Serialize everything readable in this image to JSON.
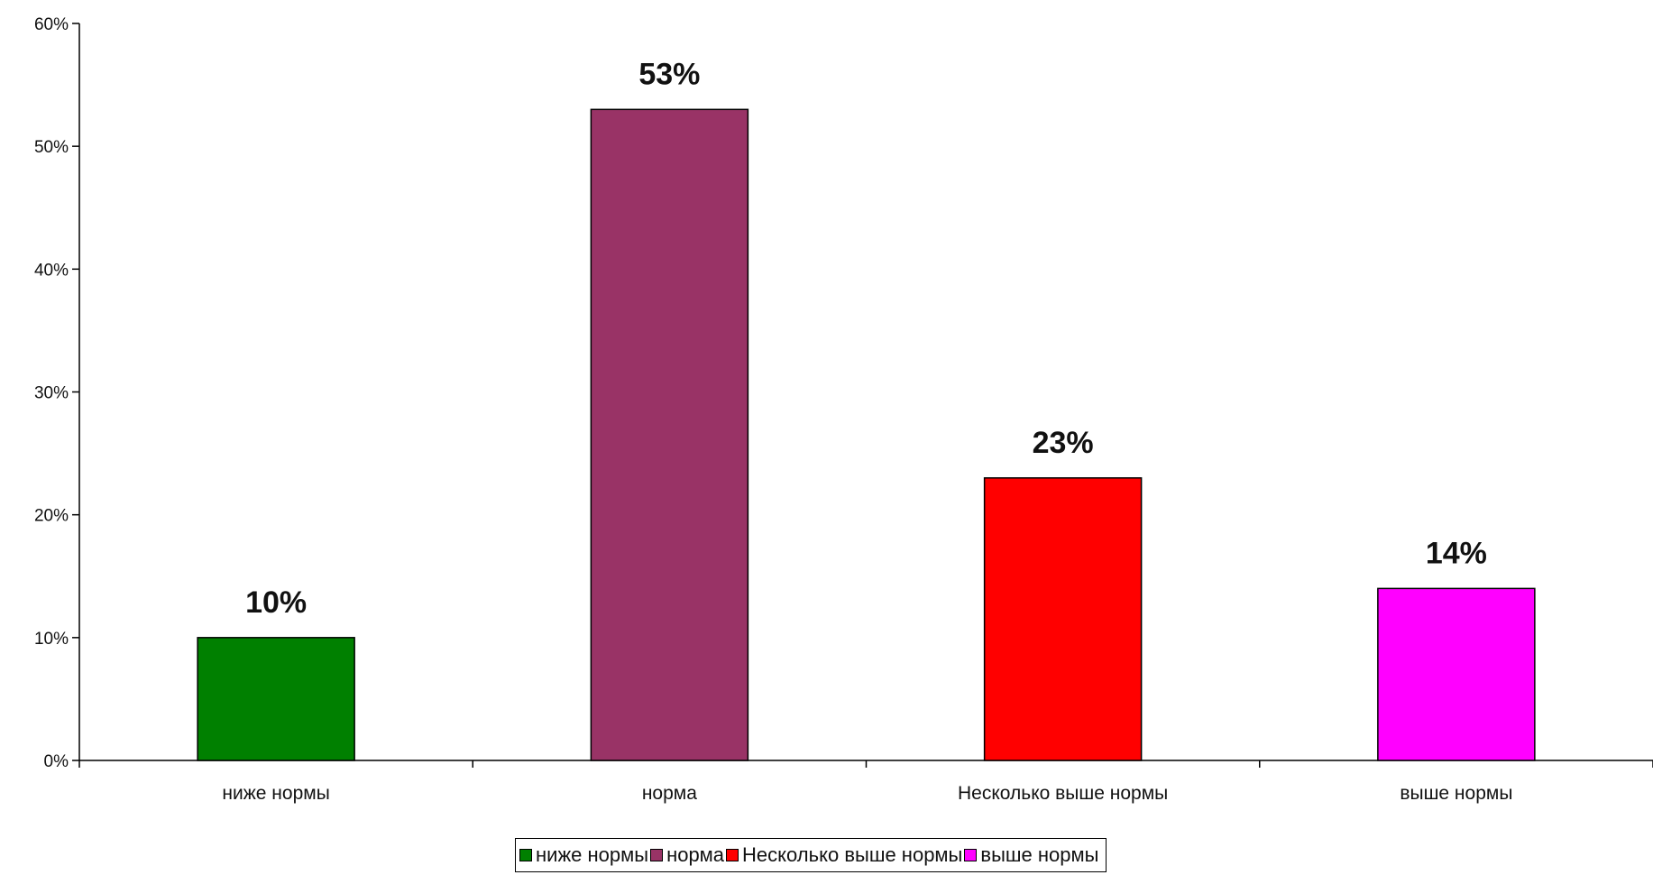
{
  "chart_data": {
    "type": "bar",
    "categories": [
      "ниже нормы",
      "норма",
      "Несколько выше нормы",
      "выше нормы"
    ],
    "values": [
      10,
      53,
      23,
      14
    ],
    "data_labels": [
      "10%",
      "53%",
      "23%",
      "14%"
    ],
    "colors": [
      "#008000",
      "#993366",
      "#ff0000",
      "#ff00ff"
    ],
    "ylim": [
      0,
      60
    ],
    "yticks": [
      0,
      10,
      20,
      30,
      40,
      50,
      60
    ],
    "ytick_labels": [
      "0%",
      "10%",
      "20%",
      "30%",
      "40%",
      "50%",
      "60%"
    ],
    "grid": false,
    "legend_position": "bottom",
    "legend": [
      "ниже нормы",
      "норма",
      "Несколько выше нормы",
      "выше нормы"
    ]
  }
}
